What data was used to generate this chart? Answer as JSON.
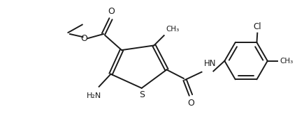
{
  "bg_color": "#ffffff",
  "line_color": "#1a1a1a",
  "line_width": 1.4,
  "figsize": [
    4.25,
    1.67
  ],
  "dpi": 100,
  "xlim": [
    0.0,
    10.0
  ],
  "ylim": [
    0.0,
    3.9
  ]
}
